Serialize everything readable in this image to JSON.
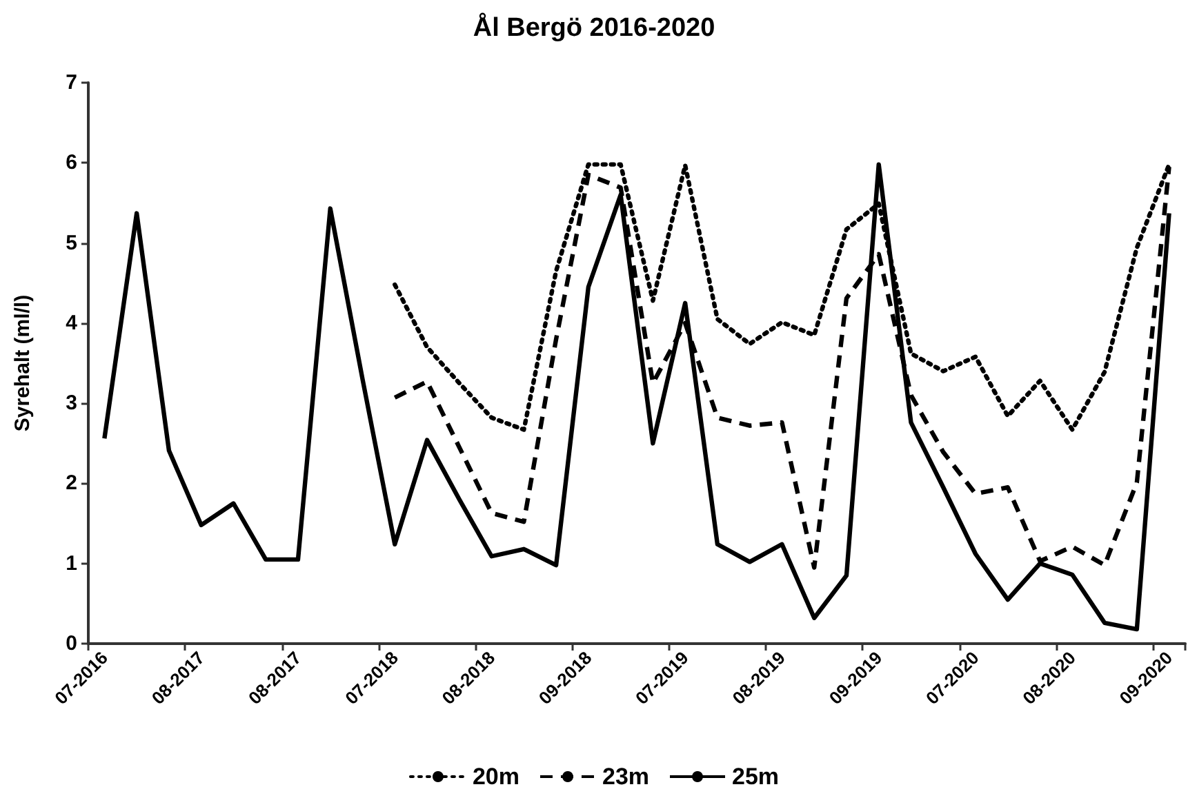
{
  "chart_data": {
    "type": "line",
    "title": "Ål Bergö 2016-2020",
    "ylabel": "Syrehalt (ml/l)",
    "categories": [
      "07-2016",
      null,
      null,
      "08-2017",
      null,
      null,
      "08-2017",
      null,
      null,
      "07-2018",
      null,
      null,
      "08-2018",
      null,
      null,
      "09-2018",
      null,
      null,
      "07-2019",
      null,
      null,
      "08-2019",
      null,
      null,
      "09-2019",
      null,
      null,
      "07-2020",
      null,
      null,
      "08-2020",
      null,
      null,
      "09-2020"
    ],
    "series": [
      {
        "name": "20m",
        "color": "#000000",
        "line_style": "dotted",
        "values": [
          null,
          null,
          null,
          null,
          null,
          null,
          null,
          null,
          null,
          4.48,
          3.7,
          3.25,
          2.82,
          2.67,
          4.65,
          5.98,
          5.98,
          4.28,
          5.97,
          4.05,
          3.74,
          4.01,
          3.85,
          5.17,
          5.49,
          3.62,
          3.4,
          3.58,
          2.84,
          3.28,
          2.67,
          3.39,
          4.94,
          5.98
        ]
      },
      {
        "name": "23m",
        "color": "#000000",
        "line_style": "dashed",
        "values": [
          null,
          null,
          null,
          null,
          null,
          null,
          null,
          null,
          null,
          3.07,
          3.27,
          2.45,
          1.63,
          1.52,
          3.8,
          5.85,
          5.69,
          3.25,
          4.0,
          2.82,
          2.72,
          2.76,
          0.95,
          4.31,
          4.86,
          3.1,
          2.39,
          1.87,
          1.95,
          1.03,
          1.21,
          0.98,
          2.01,
          5.95
        ]
      },
      {
        "name": "25m",
        "color": "#000000",
        "line_style": "solid",
        "values": [
          2.56,
          5.37,
          2.41,
          1.48,
          1.75,
          1.05,
          1.05,
          5.43,
          3.3,
          1.24,
          2.54,
          1.8,
          1.09,
          1.18,
          0.98,
          4.45,
          5.6,
          2.5,
          4.25,
          1.24,
          1.02,
          1.24,
          0.32,
          0.85,
          5.98,
          2.76,
          1.95,
          1.12,
          0.55,
          1.0,
          0.86,
          0.26,
          0.18,
          5.37
        ]
      }
    ],
    "ylim": [
      0,
      7
    ],
    "yticks": [
      0,
      1,
      2,
      3,
      4,
      5,
      6,
      7
    ],
    "grid": false,
    "legend": "bottom",
    "marker": "none"
  }
}
